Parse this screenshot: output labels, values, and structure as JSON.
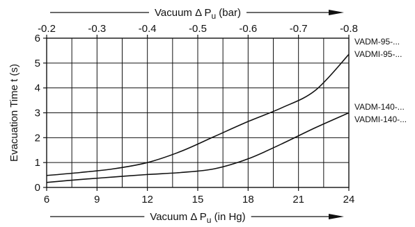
{
  "chart_data": {
    "type": "line",
    "title": "",
    "xlabel": "Vacuum Δ P",
    "xlabel_subscript": "u",
    "xlabel_unit": " (in Hg)",
    "x2label": "Vacuum Δ P",
    "x2label_subscript": "u",
    "x2label_unit": " (bar)",
    "ylabel": "Evacuation Time  t  (s)",
    "xlim": [
      6,
      24
    ],
    "ylim": [
      0,
      6
    ],
    "x2lim": [
      -0.2,
      -0.8
    ],
    "xticks": [
      6,
      9,
      12,
      15,
      18,
      21,
      24
    ],
    "x2ticks": [
      "-0.2",
      "-0.3",
      "-0.4",
      "-0.5",
      "-0.6",
      "-0.7",
      "-0.8"
    ],
    "yticks": [
      0,
      1,
      2,
      3,
      4,
      5,
      6
    ],
    "grid": true,
    "series": [
      {
        "labels": [
          "VADM-95-...",
          "VADMI-95-..."
        ],
        "points": [
          [
            6,
            0.48
          ],
          [
            8,
            0.6
          ],
          [
            10,
            0.75
          ],
          [
            12,
            1.0
          ],
          [
            14,
            1.45
          ],
          [
            16,
            2.05
          ],
          [
            18,
            2.65
          ],
          [
            20,
            3.2
          ],
          [
            22,
            3.9
          ],
          [
            24,
            5.35
          ]
        ]
      },
      {
        "labels": [
          "VADM-140-...",
          "VADMI-140-..."
        ],
        "points": [
          [
            6,
            0.2
          ],
          [
            8,
            0.32
          ],
          [
            10,
            0.42
          ],
          [
            12,
            0.52
          ],
          [
            14,
            0.6
          ],
          [
            16,
            0.75
          ],
          [
            18,
            1.15
          ],
          [
            20,
            1.75
          ],
          [
            22,
            2.4
          ],
          [
            24,
            3.0
          ]
        ]
      }
    ]
  }
}
